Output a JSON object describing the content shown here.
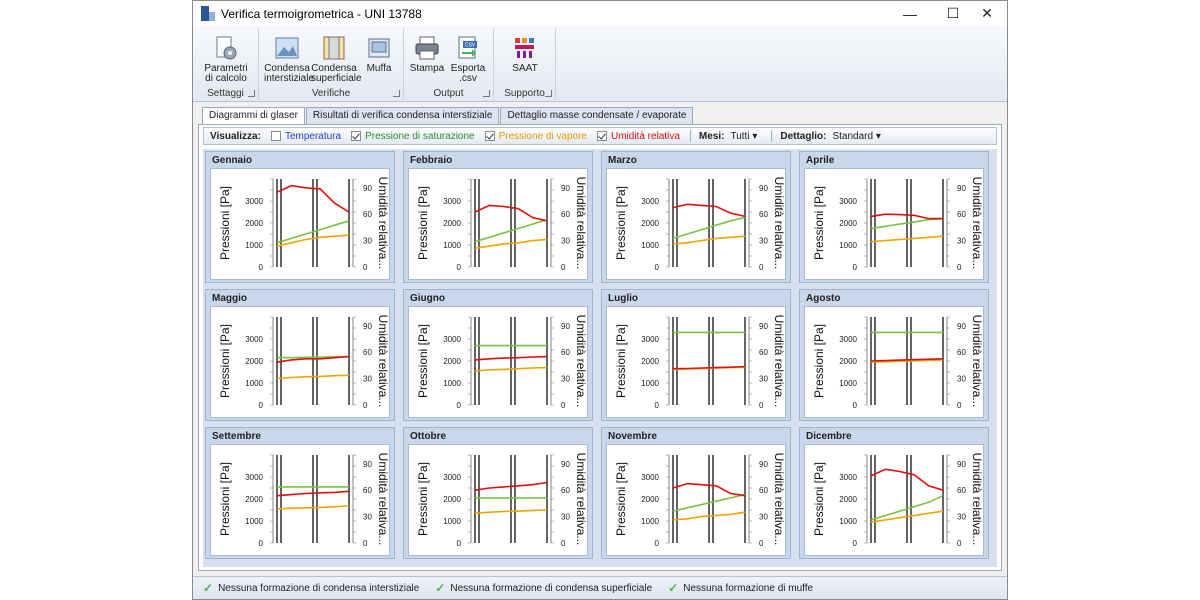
{
  "window": {
    "title": "Verifica termoigrometrica - UNI 13788"
  },
  "ribbon": {
    "groups": [
      {
        "label": "Settaggi",
        "buttons": [
          {
            "name": "parametri-di-calcolo-button",
            "icon": "gear-document-icon",
            "label": "Parametri\ndi calcolo"
          }
        ]
      },
      {
        "label": "Verifiche",
        "buttons": [
          {
            "name": "condensa-interstiziale-button",
            "icon": "landscape-chart-icon",
            "label": "Condensa\ninterstiziale"
          },
          {
            "name": "condensa-superficiale-button",
            "icon": "wall-section-icon",
            "label": "Condensa\nsuperficiale"
          },
          {
            "name": "muffa-button",
            "icon": "window-frame-icon",
            "label": "Muffa"
          }
        ]
      },
      {
        "label": "Output",
        "buttons": [
          {
            "name": "stampa-button",
            "icon": "printer-icon",
            "label": "Stampa"
          },
          {
            "name": "esporta-csv-button",
            "icon": "csv-export-icon",
            "label": "Esporta\n.csv"
          }
        ]
      },
      {
        "label": "Supporto",
        "buttons": [
          {
            "name": "saat-button",
            "icon": "saat-logo-icon",
            "label": "SAAT"
          }
        ]
      }
    ]
  },
  "tabs": [
    {
      "label": "Diagrammi di glaser",
      "active": true
    },
    {
      "label": "Risultati di verifica condensa interstiziale",
      "active": false
    },
    {
      "label": "Dettaglio masse condensate / evaporate",
      "active": false
    }
  ],
  "toolbar": {
    "visualizza_label": "Visualizza:",
    "options": [
      {
        "label": "Temperatura",
        "checked": false,
        "color": "#1f3fd6"
      },
      {
        "label": "Pressione di saturazione",
        "checked": true,
        "color": "#2e8b2e"
      },
      {
        "label": "Pressione di vapore",
        "checked": true,
        "color": "#e0a000"
      },
      {
        "label": "Umidità relativa",
        "checked": true,
        "color": "#d81010"
      }
    ],
    "mesi_label": "Mesi:",
    "mesi_value": "Tutti ▾",
    "dettaglio_label": "Dettaglio:",
    "dettaglio_value": "Standard ▾"
  },
  "chart_axes": {
    "ylabel_left": "Pressioni [Pa]",
    "ylabel_right": "Umidità relativa...",
    "left_ticks": [
      "3000",
      "2000",
      "1000",
      "0"
    ],
    "right_ticks": [
      "90",
      "60",
      "30",
      "0"
    ]
  },
  "chart_data": [
    {
      "type": "line",
      "title": "Gennaio",
      "ylim": [
        0,
        4000
      ],
      "series": [
        {
          "values": [
            3400,
            3700,
            3600,
            3550,
            2900,
            2500
          ],
          "color": "#e01010"
        },
        {
          "values": [
            1100,
            1300,
            1500,
            1700,
            1900,
            2100
          ],
          "color": "#7dc142"
        },
        {
          "values": [
            950,
            1100,
            1250,
            1350,
            1400,
            1450
          ],
          "color": "#f0a500"
        }
      ]
    },
    {
      "type": "line",
      "title": "Febbraio",
      "ylim": [
        0,
        4000
      ],
      "series": [
        {
          "values": [
            2500,
            2800,
            2750,
            2650,
            2250,
            2100
          ],
          "color": "#e01010"
        },
        {
          "values": [
            1150,
            1350,
            1550,
            1750,
            1950,
            2150
          ],
          "color": "#7dc142"
        },
        {
          "values": [
            850,
            950,
            1050,
            1100,
            1200,
            1250
          ],
          "color": "#f0a500"
        }
      ]
    },
    {
      "type": "line",
      "title": "Marzo",
      "ylim": [
        0,
        4000
      ],
      "series": [
        {
          "values": [
            2700,
            2850,
            2800,
            2750,
            2450,
            2300
          ],
          "color": "#e01010"
        },
        {
          "values": [
            1300,
            1500,
            1700,
            1900,
            2100,
            2250
          ],
          "color": "#7dc142"
        },
        {
          "values": [
            1050,
            1100,
            1200,
            1300,
            1350,
            1400
          ],
          "color": "#f0a500"
        }
      ]
    },
    {
      "type": "line",
      "title": "Aprile",
      "ylim": [
        0,
        4000
      ],
      "series": [
        {
          "values": [
            2300,
            2400,
            2380,
            2350,
            2200,
            2200
          ],
          "color": "#e01010"
        },
        {
          "values": [
            1750,
            1850,
            1950,
            2050,
            2150,
            2200
          ],
          "color": "#7dc142"
        },
        {
          "values": [
            1150,
            1200,
            1250,
            1300,
            1350,
            1400
          ],
          "color": "#f0a500"
        }
      ]
    },
    {
      "type": "line",
      "title": "Maggio",
      "ylim": [
        0,
        4000
      ],
      "series": [
        {
          "values": [
            1950,
            2050,
            2100,
            2100,
            2150,
            2200
          ],
          "color": "#e01010"
        },
        {
          "values": [
            2150,
            2150,
            2170,
            2180,
            2190,
            2200
          ],
          "color": "#7dc142"
        },
        {
          "values": [
            1200,
            1250,
            1280,
            1300,
            1330,
            1350
          ],
          "color": "#f0a500"
        }
      ]
    },
    {
      "type": "line",
      "title": "Giugno",
      "ylim": [
        0,
        4000
      ],
      "series": [
        {
          "values": [
            2050,
            2100,
            2130,
            2150,
            2180,
            2200
          ],
          "color": "#e01010"
        },
        {
          "values": [
            2700,
            2700,
            2700,
            2700,
            2700,
            2700
          ],
          "color": "#7dc142"
        },
        {
          "values": [
            1550,
            1600,
            1620,
            1650,
            1680,
            1700
          ],
          "color": "#f0a500"
        }
      ]
    },
    {
      "type": "line",
      "title": "Luglio",
      "ylim": [
        0,
        4000
      ],
      "series": [
        {
          "values": [
            1650,
            1660,
            1680,
            1700,
            1720,
            1750
          ],
          "color": "#e01010"
        },
        {
          "values": [
            3300,
            3300,
            3300,
            3300,
            3300,
            3300
          ],
          "color": "#7dc142"
        },
        {
          "values": [
            1620,
            1640,
            1660,
            1680,
            1700,
            1720
          ],
          "color": "#f0a500"
        }
      ]
    },
    {
      "type": "line",
      "title": "Agosto",
      "ylim": [
        0,
        4000
      ],
      "series": [
        {
          "values": [
            2000,
            2020,
            2040,
            2060,
            2080,
            2100
          ],
          "color": "#e01010"
        },
        {
          "values": [
            3300,
            3300,
            3300,
            3300,
            3300,
            3300
          ],
          "color": "#7dc142"
        },
        {
          "values": [
            1950,
            1970,
            1990,
            2010,
            2030,
            2050
          ],
          "color": "#f0a500"
        }
      ]
    },
    {
      "type": "line",
      "title": "Settembre",
      "ylim": [
        0,
        4000
      ],
      "series": [
        {
          "values": [
            2150,
            2200,
            2250,
            2280,
            2300,
            2350
          ],
          "color": "#e01010"
        },
        {
          "values": [
            2550,
            2550,
            2550,
            2550,
            2550,
            2550
          ],
          "color": "#7dc142"
        },
        {
          "values": [
            1550,
            1580,
            1600,
            1620,
            1650,
            1680
          ],
          "color": "#f0a500"
        }
      ]
    },
    {
      "type": "line",
      "title": "Ottobre",
      "ylim": [
        0,
        4000
      ],
      "series": [
        {
          "values": [
            2400,
            2500,
            2550,
            2600,
            2650,
            2750
          ],
          "color": "#e01010"
        },
        {
          "values": [
            2050,
            2050,
            2050,
            2050,
            2050,
            2050
          ],
          "color": "#7dc142"
        },
        {
          "values": [
            1350,
            1400,
            1430,
            1450,
            1480,
            1500
          ],
          "color": "#f0a500"
        }
      ]
    },
    {
      "type": "line",
      "title": "Novembre",
      "ylim": [
        0,
        4000
      ],
      "series": [
        {
          "values": [
            2500,
            2700,
            2650,
            2600,
            2250,
            2150
          ],
          "color": "#e01010"
        },
        {
          "values": [
            1450,
            1600,
            1750,
            1900,
            2050,
            2200
          ],
          "color": "#7dc142"
        },
        {
          "values": [
            1050,
            1100,
            1200,
            1250,
            1300,
            1400
          ],
          "color": "#f0a500"
        }
      ]
    },
    {
      "type": "line",
      "title": "Dicembre",
      "ylim": [
        0,
        4000
      ],
      "series": [
        {
          "values": [
            3050,
            3350,
            3250,
            3100,
            2600,
            2400
          ],
          "color": "#e01010"
        },
        {
          "values": [
            1050,
            1250,
            1450,
            1650,
            1850,
            2150
          ],
          "color": "#7dc142"
        },
        {
          "values": [
            950,
            1050,
            1150,
            1250,
            1350,
            1450
          ],
          "color": "#f0a500"
        }
      ]
    }
  ],
  "status": [
    {
      "text": "Nessuna formazione di condensa interstiziale"
    },
    {
      "text": "Nessuna formazione di condensa superficiale"
    },
    {
      "text": "Nessuna formazione di muffe"
    }
  ]
}
